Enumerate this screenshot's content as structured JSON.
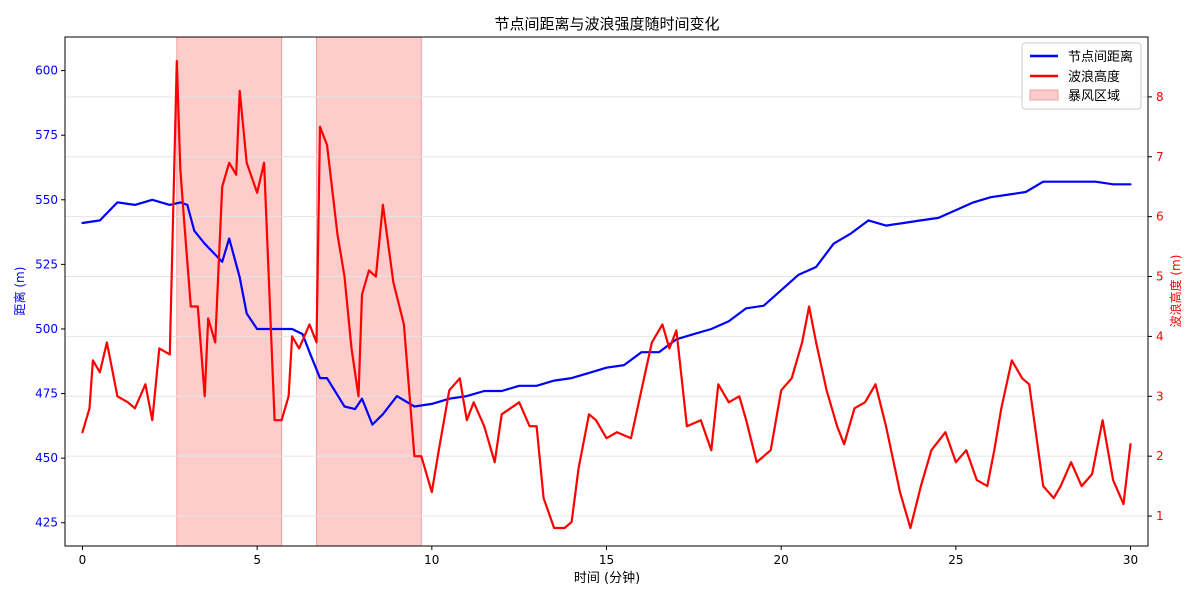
{
  "chart_data": {
    "type": "line",
    "title": "节点间距离与波浪强度随时间变化",
    "xlabel": "时间 (分钟)",
    "ylabel_left": "距离 (m)",
    "ylabel_right": "波浪高度 (m)",
    "xlim": [
      -0.5,
      30.5
    ],
    "ylim_left": [
      416,
      613
    ],
    "ylim_right": [
      0.5,
      9.0
    ],
    "x_ticks": [
      0,
      5,
      10,
      15,
      20,
      25,
      30
    ],
    "y_left_ticks": [
      425,
      450,
      475,
      500,
      525,
      550,
      575,
      600
    ],
    "y_right_ticks": [
      1,
      2,
      3,
      4,
      5,
      6,
      7,
      8
    ],
    "grid": true,
    "legend_position": "top-right",
    "storm_regions": [
      [
        2.7,
        5.7
      ],
      [
        6.7,
        9.7
      ]
    ],
    "series": [
      {
        "name": "节点间距离",
        "axis": "left",
        "color": "#0000ff",
        "x": [
          0,
          0.5,
          1.0,
          1.5,
          2.0,
          2.5,
          2.8,
          3.0,
          3.2,
          3.5,
          4.0,
          4.2,
          4.5,
          4.7,
          5.0,
          5.5,
          6.0,
          6.3,
          6.5,
          6.8,
          7.0,
          7.5,
          7.8,
          8.0,
          8.3,
          8.6,
          9.0,
          9.5,
          10.0,
          10.5,
          11.0,
          11.5,
          12.0,
          12.5,
          13.0,
          13.5,
          14.0,
          14.5,
          15.0,
          15.5,
          16.0,
          16.5,
          17.0,
          17.5,
          18.0,
          18.5,
          19.0,
          19.5,
          20.0,
          20.5,
          21.0,
          21.5,
          22.0,
          22.5,
          23.0,
          23.5,
          24.0,
          24.5,
          25.0,
          25.5,
          26.0,
          26.5,
          27.0,
          27.5,
          28.0,
          28.5,
          29.0,
          29.5,
          30.0
        ],
        "values": [
          541,
          542,
          549,
          548,
          550,
          548,
          549,
          548,
          538,
          533,
          526,
          535,
          520,
          506,
          500,
          500,
          500,
          498,
          491,
          481,
          481,
          470,
          469,
          473,
          463,
          467,
          474,
          470,
          471,
          473,
          474,
          476,
          476,
          478,
          478,
          480,
          481,
          483,
          485,
          486,
          491,
          491,
          496,
          498,
          500,
          503,
          508,
          509,
          515,
          521,
          524,
          533,
          537,
          542,
          540,
          541,
          542,
          543,
          546,
          549,
          551,
          552,
          553,
          557,
          557,
          557,
          557,
          556,
          556
        ]
      },
      {
        "name": "波浪高度",
        "axis": "right",
        "color": "#ff0000",
        "x": [
          0,
          0.2,
          0.3,
          0.5,
          0.7,
          1.0,
          1.3,
          1.5,
          1.8,
          2.0,
          2.2,
          2.5,
          2.7,
          2.8,
          2.9,
          3.1,
          3.3,
          3.5,
          3.6,
          3.8,
          4.0,
          4.2,
          4.4,
          4.5,
          4.7,
          5.0,
          5.2,
          5.5,
          5.7,
          5.9,
          6.0,
          6.2,
          6.5,
          6.7,
          6.8,
          7.0,
          7.3,
          7.5,
          7.7,
          7.9,
          8.0,
          8.2,
          8.4,
          8.6,
          8.9,
          9.2,
          9.5,
          9.7,
          10.0,
          10.2,
          10.5,
          10.8,
          11.0,
          11.2,
          11.5,
          11.8,
          12.0,
          12.5,
          12.8,
          13.0,
          13.2,
          13.5,
          13.8,
          14.0,
          14.2,
          14.5,
          14.7,
          15.0,
          15.3,
          15.7,
          16.0,
          16.3,
          16.6,
          16.8,
          17.0,
          17.3,
          17.7,
          18.0,
          18.2,
          18.5,
          18.8,
          19.0,
          19.3,
          19.7,
          20.0,
          20.3,
          20.6,
          20.8,
          21.0,
          21.3,
          21.6,
          21.8,
          22.1,
          22.4,
          22.7,
          23.0,
          23.4,
          23.7,
          24.0,
          24.3,
          24.7,
          25.0,
          25.3,
          25.6,
          25.9,
          26.1,
          26.3,
          26.6,
          26.9,
          27.1,
          27.5,
          27.8,
          28.0,
          28.3,
          28.6,
          28.9,
          29.2,
          29.5,
          29.8,
          30.0
        ],
        "values": [
          2.4,
          2.8,
          3.6,
          3.4,
          3.9,
          3.0,
          2.9,
          2.8,
          3.2,
          2.6,
          3.8,
          3.7,
          8.6,
          6.8,
          6.0,
          4.5,
          4.5,
          3.0,
          4.3,
          3.9,
          6.5,
          6.9,
          6.7,
          8.1,
          6.9,
          6.4,
          6.9,
          2.6,
          2.6,
          3.0,
          4.0,
          3.8,
          4.2,
          3.9,
          7.5,
          7.2,
          5.7,
          5.0,
          3.8,
          3.0,
          4.7,
          5.1,
          5.0,
          6.2,
          4.9,
          4.2,
          2.0,
          2.0,
          1.4,
          2.1,
          3.1,
          3.3,
          2.6,
          2.9,
          2.5,
          1.9,
          2.7,
          2.9,
          2.5,
          2.5,
          1.3,
          0.8,
          0.8,
          0.9,
          1.8,
          2.7,
          2.6,
          2.3,
          2.4,
          2.3,
          3.1,
          3.9,
          4.2,
          3.8,
          4.1,
          2.5,
          2.6,
          2.1,
          3.2,
          2.9,
          3.0,
          2.6,
          1.9,
          2.1,
          3.1,
          3.3,
          3.9,
          4.5,
          3.9,
          3.1,
          2.5,
          2.2,
          2.8,
          2.9,
          3.2,
          2.5,
          1.4,
          0.8,
          1.5,
          2.1,
          2.4,
          1.9,
          2.1,
          1.6,
          1.5,
          2.1,
          2.8,
          3.6,
          3.3,
          3.2,
          1.5,
          1.3,
          1.5,
          1.9,
          1.5,
          1.7,
          2.6,
          1.6,
          1.2,
          2.2
        ]
      }
    ],
    "legend": {
      "items": [
        "节点间距离",
        "波浪高度",
        "暴风区域"
      ]
    },
    "colors": {
      "distance": "#0000ff",
      "wave": "#ff0000",
      "storm": "#ffcccc",
      "storm_edge": "#f0a0a0"
    }
  }
}
